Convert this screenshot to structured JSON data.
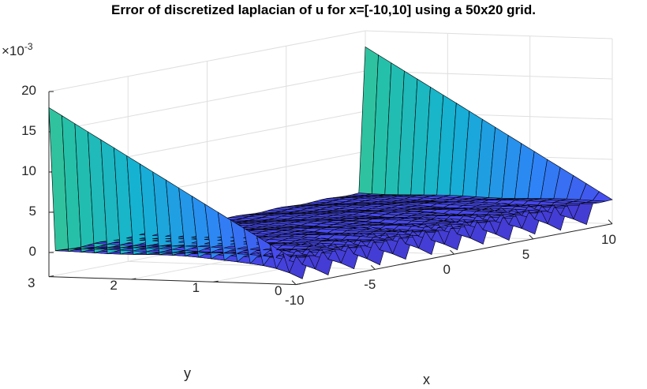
{
  "chart_data": {
    "type": "surface",
    "title": "Error of discretized laplacian of u for x=[-10,10] using a 50x20 grid.",
    "xlabel": "x",
    "ylabel": "y",
    "zlabel": "",
    "xlim": [
      -10,
      10
    ],
    "ylim": [
      0,
      3
    ],
    "zlim": [
      -3,
      20
    ],
    "z_multiplier": "×10",
    "z_exponent": "-3",
    "x_ticks": [
      "-10",
      "-5",
      "0",
      "5",
      "10"
    ],
    "y_ticks": [
      "0",
      "1",
      "2",
      "3"
    ],
    "z_ticks": [
      "0",
      "5",
      "10",
      "15",
      "20"
    ],
    "grid": true,
    "colormap": "parula",
    "grid_size": {
      "x_points": 50,
      "y_points": 20
    },
    "boundary_error": {
      "left_edge_x": -10,
      "right_edge_x": 10,
      "max_value": 18,
      "min_value": 0,
      "trend": "decreases linearly from y=3 to y=0"
    },
    "interior_error": {
      "approx_value": 0,
      "range": [
        -2.5,
        0.5
      ]
    }
  }
}
